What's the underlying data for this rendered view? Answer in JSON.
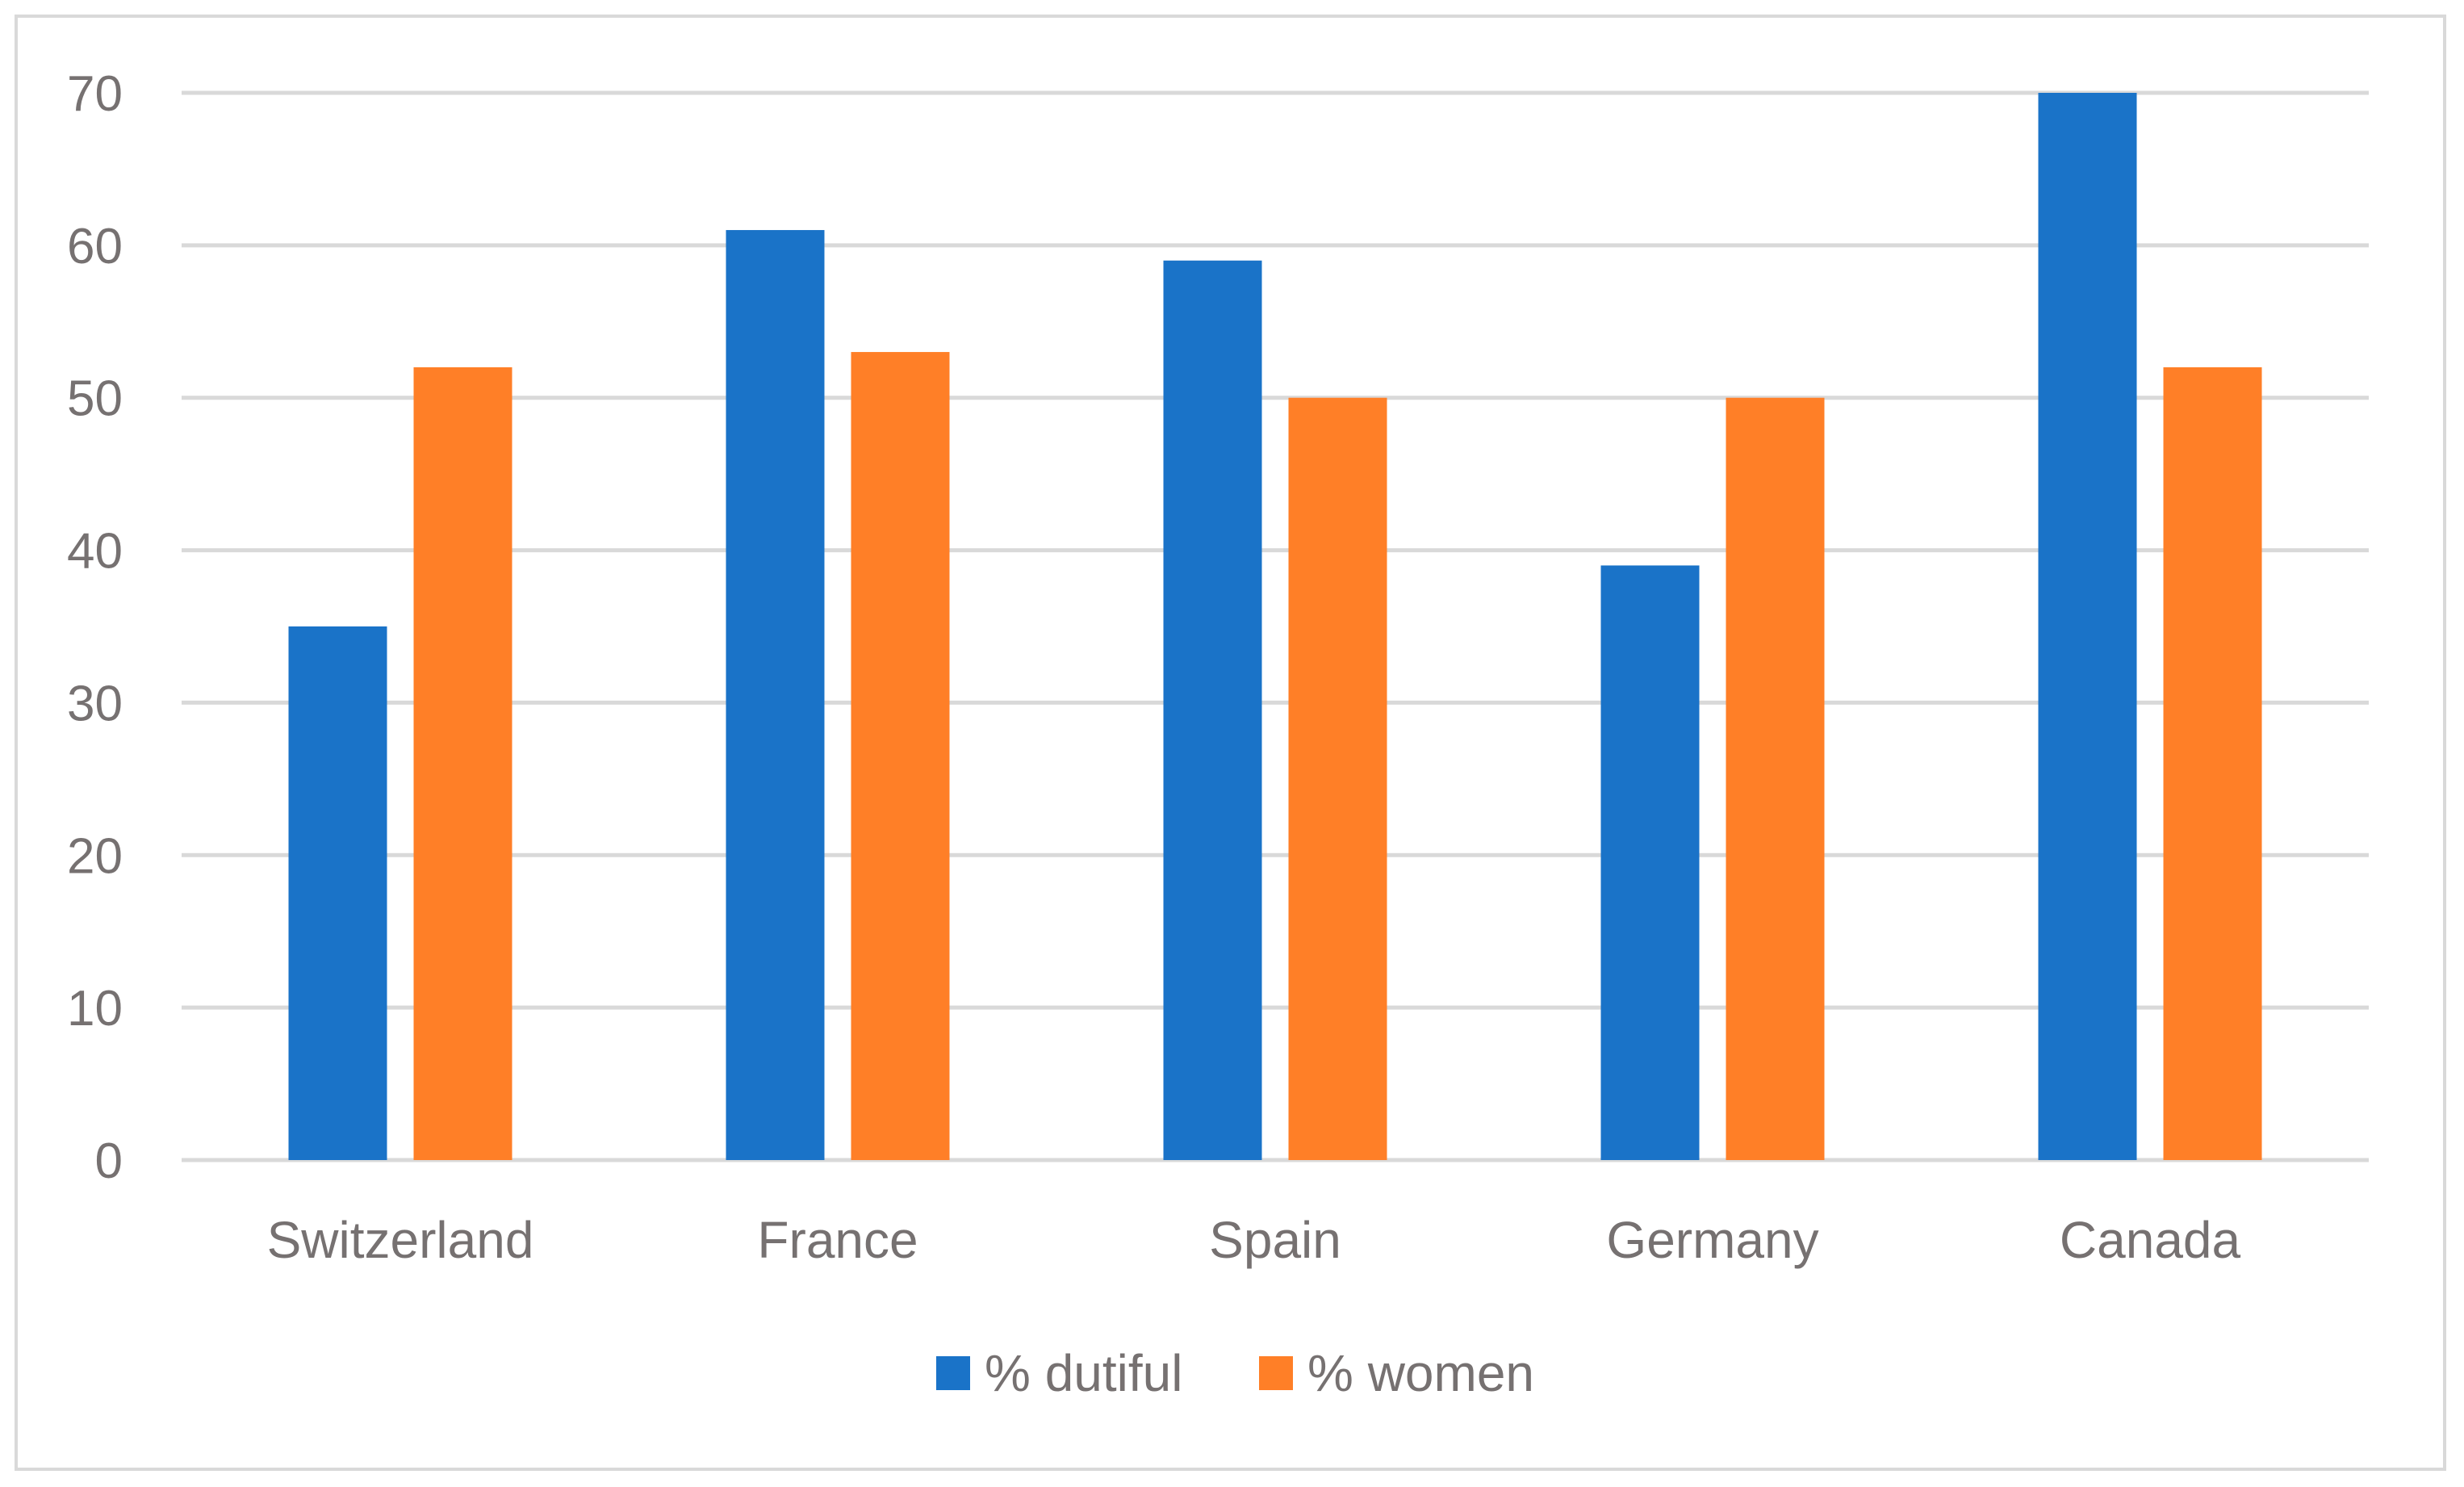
{
  "chart_data": {
    "type": "bar",
    "title": "",
    "xlabel": "",
    "ylabel": "",
    "categories": [
      "Switzerland",
      "France",
      "Spain",
      "Germany",
      "Canada"
    ],
    "series": [
      {
        "name": "% dutiful",
        "color": "#1a73c8",
        "values": [
          35,
          61,
          59,
          39,
          70
        ]
      },
      {
        "name": "% women",
        "color": "#ff7f27",
        "values": [
          52,
          53,
          50,
          50,
          52
        ]
      }
    ],
    "ylim": [
      0,
      70
    ],
    "yticks": [
      0,
      10,
      20,
      30,
      40,
      50,
      60,
      70
    ],
    "ytick_labels": [
      "0",
      "10",
      "20",
      "30",
      "40",
      "50",
      "60",
      "70"
    ],
    "grid": true,
    "legend_position": "bottom",
    "gridline_color": "#d9d9d9",
    "label_color": "#767171"
  }
}
